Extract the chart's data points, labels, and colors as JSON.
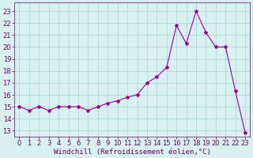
{
  "x_vals": [
    0,
    1,
    2,
    3,
    4,
    5,
    6,
    7,
    8,
    9,
    10,
    11,
    12,
    13,
    14,
    15,
    16,
    17,
    18,
    19,
    20,
    21,
    22,
    23
  ],
  "y_vals": [
    15.0,
    14.7,
    15.0,
    14.7,
    15.0,
    15.0,
    15.0,
    14.7,
    15.0,
    15.3,
    15.5,
    15.8,
    16.0,
    17.0,
    17.5,
    18.3,
    21.8,
    20.3,
    23.0,
    21.2,
    20.0,
    20.0,
    16.3,
    12.8
  ],
  "line_color": "#990099",
  "marker": "*",
  "markersize": 3,
  "bg_color": "#d8f0f0",
  "grid_color": "#b0d8d8",
  "xlabel": "Windchill (Refroidissement éolien,°C)",
  "yticks": [
    13,
    14,
    15,
    16,
    17,
    18,
    19,
    20,
    21,
    22,
    23
  ],
  "xticks": [
    0,
    1,
    2,
    3,
    4,
    5,
    6,
    7,
    8,
    9,
    10,
    11,
    12,
    13,
    14,
    15,
    16,
    17,
    18,
    19,
    20,
    21,
    22,
    23
  ],
  "ylim": [
    12.5,
    23.7
  ],
  "xlim": [
    -0.5,
    23.5
  ],
  "font_color": "#660066",
  "xlabel_fontsize": 6.5,
  "tick_fontsize": 6
}
